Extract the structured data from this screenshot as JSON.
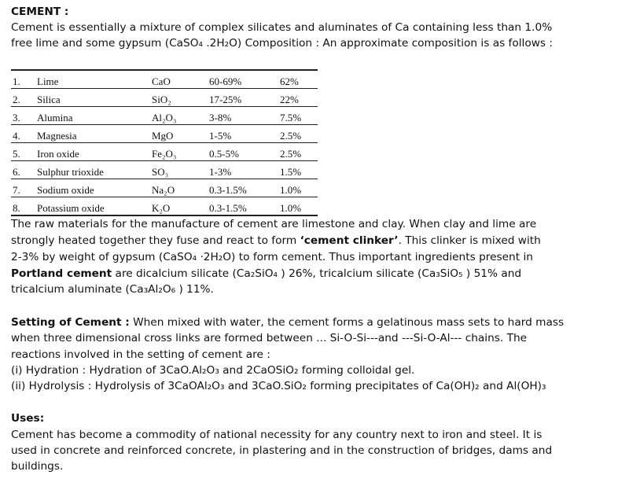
{
  "heading": "CEMENT :",
  "intro": {
    "line1": "Cement is essentially a mixture of complex silicates and aluminates of Ca containing less than 1.0%",
    "line2": "free lime and some gypsum (CaSO₄ .2H₂O) Composition : An approximate composition is as follows :"
  },
  "composition_table": {
    "rows": [
      {
        "no": "1.",
        "name": "Lime",
        "formula": "CaO",
        "range": "60-69%",
        "typical": "62%"
      },
      {
        "no": "2.",
        "name": "Silica",
        "formula": "SiO₂",
        "range": "17-25%",
        "typical": "22%"
      },
      {
        "no": "3.",
        "name": "Alumina",
        "formula": "Al₂O₃",
        "range": "3-8%",
        "typical": "7.5%"
      },
      {
        "no": "4.",
        "name": "Magnesia",
        "formula": "MgO",
        "range": "1-5%",
        "typical": "2.5%"
      },
      {
        "no": "5.",
        "name": "Iron oxide",
        "formula": "Fe₂O₃",
        "range": "0.5-5%",
        "typical": "2.5%"
      },
      {
        "no": "6.",
        "name": "Sulphur trioxide",
        "formula": "SO₃",
        "range": "1-3%",
        "typical": "1.5%"
      },
      {
        "no": "7.",
        "name": "Sodium oxide",
        "formula": "Na₂O",
        "range": "0.3-1.5%",
        "typical": "1.0%"
      },
      {
        "no": "8.",
        "name": "Potassium oxide",
        "formula": "K₂O",
        "range": "0.3-1.5%",
        "typical": "1.0%"
      }
    ]
  },
  "raw": {
    "line1": "The raw materials for the manufacture of cement are limestone and clay. When clay and lime are",
    "line2_a": "strongly heated together they fuse and react to form ",
    "line2_bold": "‘cement clinker’",
    "line2_b": ". This clinker is mixed with",
    "line3": "2-3% by weight of gypsum (CaSO₄ ·2H₂O) to form cement. Thus important ingredients present in",
    "line4_bold": "Portland cement",
    "line4_b": " are dicalcium silicate (Ca₂SiO₄ ) 26%, tricalcium silicate (Ca₃SiO₅ ) 51% and",
    "line5": "tricalcium aluminate (Ca₃Al₂O₆ ) 11%."
  },
  "setting": {
    "title": "Setting of Cement :",
    "line1_rest": " When mixed with water, the cement forms a gelatinous mass sets to hard mass",
    "line2": "when three dimensional cross links are formed between ... Si-O-Si---and ---Si-O-Al--- chains. The",
    "line3": "reactions involved in the setting of cement are :",
    "line4": "(i) Hydration : Hydration of 3CaO.Al₂O₃ and 2CaOSiO₂ forming colloidal gel.",
    "line5": "(ii) Hydrolysis : Hydrolysis of 3CaOAl₂O₃ and 3CaO.SiO₂ forming precipitates of Ca(OH)₂ and Al(OH)₃"
  },
  "uses": {
    "title": "Uses:",
    "line1": "Cement has become a commodity of national necessity for any country next to iron and steel. It is",
    "line2": "used in concrete and reinforced concrete, in plastering and in the construction of bridges, dams and",
    "line3": "buildings."
  }
}
